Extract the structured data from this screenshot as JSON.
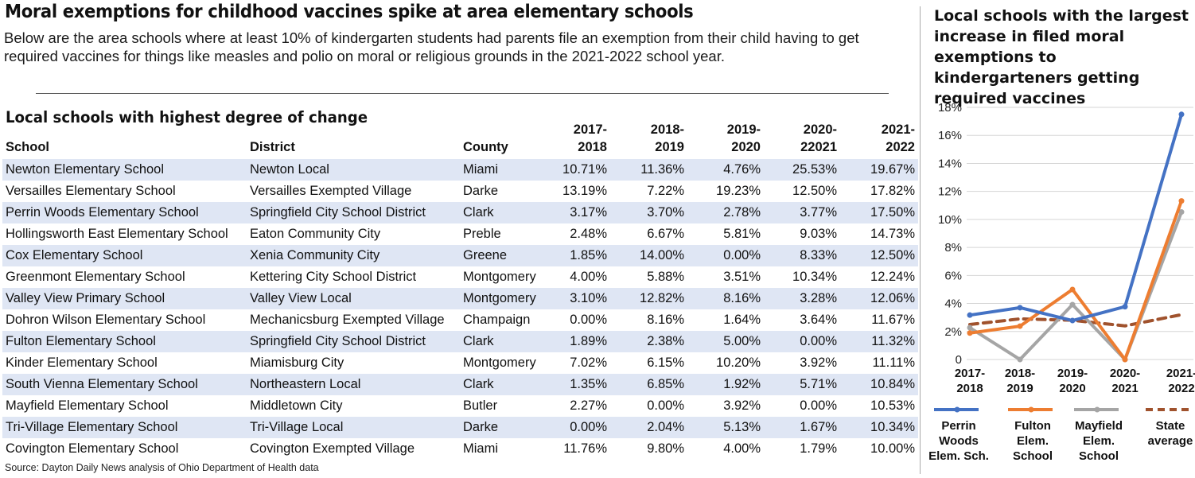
{
  "headline": "Moral exemptions for childhood vaccines spike at area elementary schools",
  "intro": "Below are the area schools where at least 10% of kindergarten students had parents file an exemption from their child having to get required vaccines for things like measles and polio on moral or religious grounds in the 2021-2022 school year.",
  "table": {
    "title": "Local schools with highest degree of change",
    "headers": {
      "school": "School",
      "district": "District",
      "county": "County",
      "y1a": "2017-",
      "y1b": "2018",
      "y2a": "2018-",
      "y2b": "2019",
      "y3a": "2019-",
      "y3b": "2020",
      "y4a": "2020-",
      "y4b": "22021",
      "y5a": "2021-",
      "y5b": "2022"
    },
    "rows": [
      [
        "Newton Elementary School",
        "Newton Local",
        "Miami",
        "10.71%",
        "11.36%",
        "4.76%",
        "25.53%",
        "19.67%"
      ],
      [
        "Versailles Elementary School",
        "Versailles Exempted Village",
        "Darke",
        "13.19%",
        "7.22%",
        "19.23%",
        "12.50%",
        "17.82%"
      ],
      [
        "Perrin Woods Elementary School",
        "Springfield City School District",
        "Clark",
        "3.17%",
        "3.70%",
        "2.78%",
        "3.77%",
        "17.50%"
      ],
      [
        "Hollingsworth East Elementary School",
        "Eaton Community City",
        "Preble",
        "2.48%",
        "6.67%",
        "5.81%",
        "9.03%",
        "14.73%"
      ],
      [
        "Cox Elementary School",
        "Xenia Community City",
        "Greene",
        "1.85%",
        "14.00%",
        "0.00%",
        "8.33%",
        "12.50%"
      ],
      [
        "Greenmont Elementary School",
        "Kettering City School District",
        "Montgomery",
        "4.00%",
        "5.88%",
        "3.51%",
        "10.34%",
        "12.24%"
      ],
      [
        "Valley View Primary School",
        "Valley View Local",
        "Montgomery",
        "3.10%",
        "12.82%",
        "8.16%",
        "3.28%",
        "12.06%"
      ],
      [
        "Dohron Wilson Elementary School",
        "Mechanicsburg Exempted Village",
        "Champaign",
        "0.00%",
        "8.16%",
        "1.64%",
        "3.64%",
        "11.67%"
      ],
      [
        "Fulton Elementary School",
        "Springfield City School District",
        "Clark",
        "1.89%",
        "2.38%",
        "5.00%",
        "0.00%",
        "11.32%"
      ],
      [
        "Kinder Elementary School",
        "Miamisburg City",
        "Montgomery",
        "7.02%",
        "6.15%",
        "10.20%",
        "3.92%",
        "11.11%"
      ],
      [
        "South Vienna Elementary School",
        "Northeastern Local",
        "Clark",
        "1.35%",
        "6.85%",
        "1.92%",
        "5.71%",
        "10.84%"
      ],
      [
        "Mayfield Elementary School",
        "Middletown City",
        "Butler",
        "2.27%",
        "0.00%",
        "3.92%",
        "0.00%",
        "10.53%"
      ],
      [
        "Tri-Village Elementary School",
        "Tri-Village Local",
        "Darke",
        "0.00%",
        "2.04%",
        "5.13%",
        "1.67%",
        "10.34%"
      ],
      [
        "Covington Elementary School",
        "Covington Exempted Village",
        "Miami",
        "11.76%",
        "9.80%",
        "4.00%",
        "1.79%",
        "10.00%"
      ]
    ]
  },
  "source": "Source: Dayton Daily News analysis of Ohio Department of Health data",
  "colors": {
    "row_stripe": "#dfe6f4",
    "perrin": "#4472c4",
    "fulton": "#ed7d31",
    "mayfield": "#a5a5a5",
    "state": "#a0522d"
  },
  "chart_data": {
    "type": "line",
    "title": "Local schools with the largest increase in filed moral exemptions to kindergarteners getting required vaccines",
    "categories": [
      [
        "2017-",
        "2018"
      ],
      [
        "2018-",
        "2019"
      ],
      [
        "2019-",
        "2020"
      ],
      [
        "2020-",
        "2021"
      ],
      [
        "2021-",
        "2022"
      ]
    ],
    "ylim": [
      0,
      18
    ],
    "yticks": [
      0,
      2,
      4,
      6,
      8,
      10,
      12,
      14,
      16,
      18
    ],
    "ytick_labels": [
      "0",
      "2%",
      "4%",
      "6%",
      "8%",
      "10%",
      "12%",
      "14%",
      "16%",
      "18%"
    ],
    "grid": true,
    "legend_position": "bottom",
    "series": [
      {
        "name": "Perrin Woods Elem. Sch.",
        "name_lines": [
          "Perrin",
          "Woods",
          "Elem. Sch."
        ],
        "values": [
          3.17,
          3.7,
          2.78,
          3.77,
          17.5
        ],
        "color": "#4472c4",
        "dashed": false
      },
      {
        "name": "Fulton Elem. School",
        "name_lines": [
          "Fulton",
          "Elem.",
          "School"
        ],
        "values": [
          1.89,
          2.38,
          5.0,
          0.0,
          11.32
        ],
        "color": "#ed7d31",
        "dashed": false
      },
      {
        "name": "Mayfield Elem. School",
        "name_lines": [
          "Mayfield",
          "Elem.",
          "School"
        ],
        "values": [
          2.27,
          0.0,
          3.92,
          0.0,
          10.53
        ],
        "color": "#a5a5a5",
        "dashed": false
      },
      {
        "name": "State average",
        "name_lines": [
          "State",
          "average"
        ],
        "values": [
          2.5,
          2.9,
          2.8,
          2.4,
          3.2
        ],
        "color": "#a0522d",
        "dashed": true
      }
    ]
  }
}
